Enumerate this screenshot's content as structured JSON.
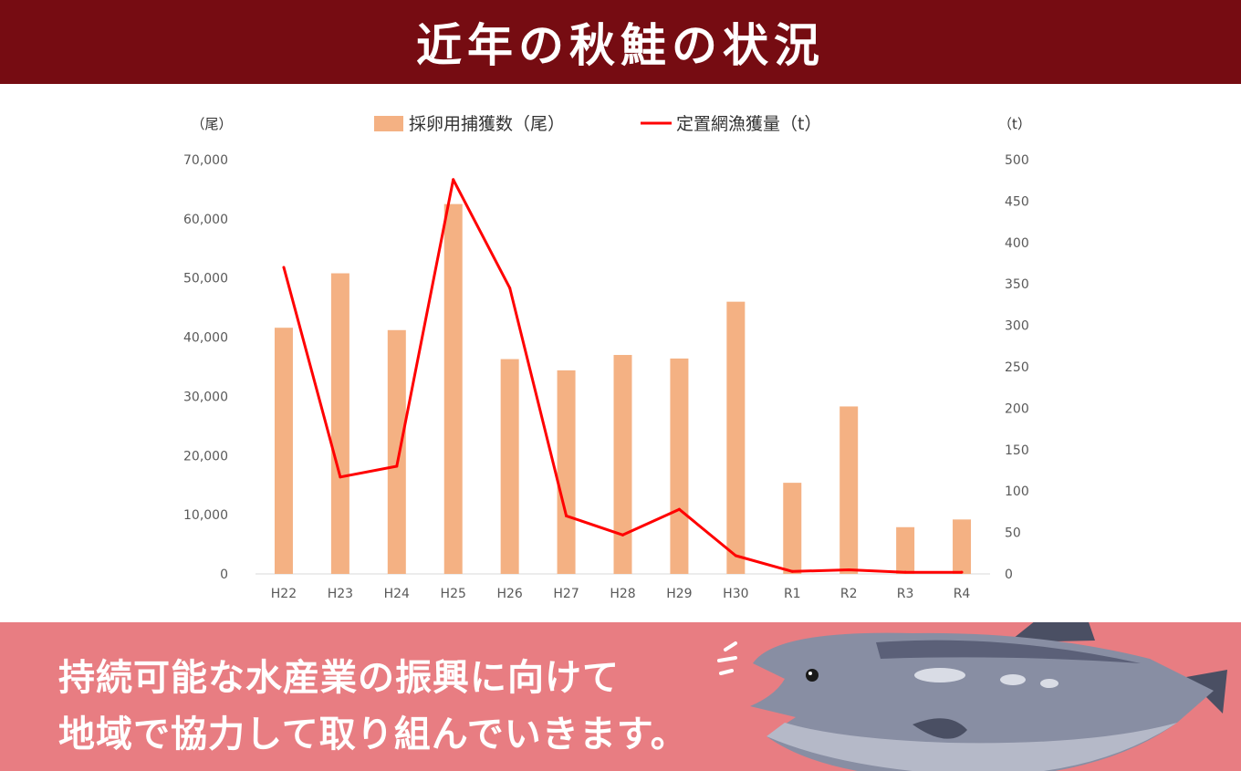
{
  "header": {
    "title": "近年の秋鮭の状況"
  },
  "message": {
    "line1": "持続可能な水産業の振興に向けて",
    "line2": "地域で協力して取り組んでいきます。"
  },
  "colors": {
    "header_bg": "#760c12",
    "band_bg": "#e87d82",
    "bar": "#f4b183",
    "line": "#ff0000"
  },
  "chart_data": {
    "type": "bar",
    "categories": [
      "H22",
      "H23",
      "H24",
      "H25",
      "H26",
      "H27",
      "H28",
      "H29",
      "H30",
      "R1",
      "R2",
      "R3",
      "R4"
    ],
    "series": [
      {
        "name": "採卵用捕獲数（尾）",
        "type": "bar",
        "axis": "left",
        "values": [
          41600,
          50800,
          41200,
          62500,
          36300,
          34400,
          37000,
          36400,
          46000,
          15400,
          28300,
          7900,
          9200
        ]
      },
      {
        "name": "定置網漁獲量（t）",
        "type": "line",
        "axis": "right",
        "values": [
          370,
          117,
          130,
          476,
          345,
          70,
          47,
          78,
          22,
          3,
          5,
          2,
          2
        ]
      }
    ],
    "y_left": {
      "unit": "（尾）",
      "min": 0,
      "max": 70000,
      "ticks": [
        0,
        10000,
        20000,
        30000,
        40000,
        50000,
        60000,
        70000
      ],
      "tick_labels": [
        "0",
        "10,000",
        "20,000",
        "30,000",
        "40,000",
        "50,000",
        "60,000",
        "70,000"
      ]
    },
    "y_right": {
      "unit": "（t）",
      "min": 0,
      "max": 500,
      "ticks": [
        0,
        50,
        100,
        150,
        200,
        250,
        300,
        350,
        400,
        450,
        500
      ],
      "tick_labels": [
        "0",
        "50",
        "100",
        "150",
        "200",
        "250",
        "300",
        "350",
        "400",
        "450",
        "500"
      ]
    },
    "grid": false,
    "legend_position": "top"
  }
}
